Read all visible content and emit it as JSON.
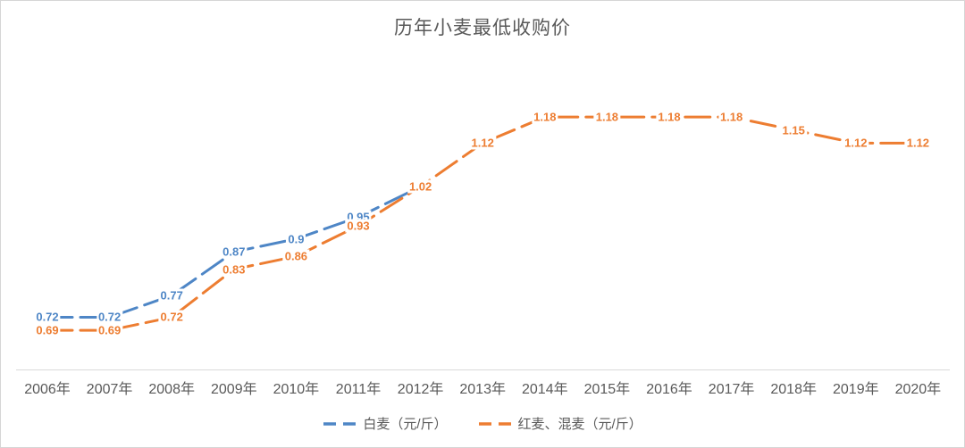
{
  "title": "历年小麦最低收购价",
  "colors": {
    "white_wheat": "#4E86C6",
    "red_mixed_wheat": "#ED7D31",
    "axis_text": "#595959",
    "axis_line": "#D9D9D9",
    "title_text": "#595959",
    "frame_border": "#D6D6D6"
  },
  "chart_data": {
    "type": "line",
    "title": "历年小麦最低收购价",
    "categories": [
      "2006年",
      "2007年",
      "2008年",
      "2009年",
      "2010年",
      "2011年",
      "2012年",
      "2013年",
      "2014年",
      "2015年",
      "2016年",
      "2017年",
      "2018年",
      "2019年",
      "2020年"
    ],
    "series": [
      {
        "name": "白麦（元/斤）",
        "color": "#4E86C6",
        "line_style": "dashed",
        "values": [
          0.72,
          0.72,
          0.77,
          0.87,
          0.9,
          0.95,
          1.02
        ]
      },
      {
        "name": "红麦、混麦（元/斤）",
        "color": "#ED7D31",
        "line_style": "dashed",
        "values": [
          0.69,
          0.69,
          0.72,
          0.83,
          0.86,
          0.93,
          1.02,
          1.12,
          1.18,
          1.18,
          1.18,
          1.18,
          1.15,
          1.12,
          1.12
        ]
      }
    ],
    "xlabel": "",
    "ylabel": "",
    "ylim": [
      0.6,
      1.3
    ],
    "grid": false,
    "y_axis_visible": false,
    "data_labels": "value shown centered on each point, colored per series",
    "legend_position": "bottom-center"
  }
}
